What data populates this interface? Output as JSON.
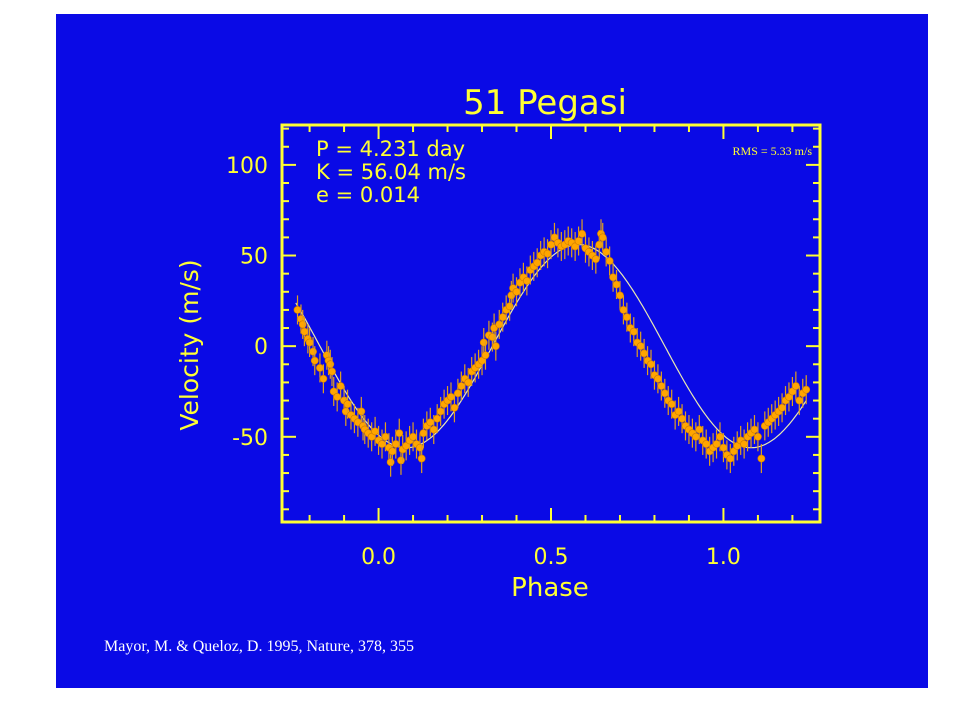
{
  "chart_data": {
    "type": "scatter",
    "title": "51 Pegasi",
    "xlabel": "Phase",
    "ylabel": "Velocity  (m/s)",
    "xlim": [
      -0.28,
      1.28
    ],
    "ylim": [
      -97,
      122
    ],
    "xticks": [
      0.0,
      0.5,
      1.0
    ],
    "xtick_labels": [
      "0.0",
      "0.5",
      "1.0"
    ],
    "yticks": [
      -50,
      0,
      50,
      100
    ],
    "ytick_labels": [
      "-50",
      "0",
      "50",
      "100"
    ],
    "grid": false,
    "params": [
      "P = 4.231 day",
      "K = 56.04 m/s",
      "e = 0.014"
    ],
    "rms_label": "RMS = 5.33 m/s",
    "fit_curve": {
      "amplitude": 56.04,
      "peak_phase": 0.58,
      "offset": 0
    },
    "series": [
      {
        "points": [
          [
            -0.235,
            20
          ],
          [
            -0.225,
            15
          ],
          [
            -0.22,
            12
          ],
          [
            -0.215,
            8
          ],
          [
            -0.205,
            4
          ],
          [
            -0.2,
            2
          ],
          [
            -0.19,
            -3
          ],
          [
            -0.185,
            -8
          ],
          [
            -0.17,
            -12
          ],
          [
            -0.16,
            -18
          ],
          [
            -0.15,
            -5
          ],
          [
            -0.145,
            -8
          ],
          [
            -0.14,
            -10
          ],
          [
            -0.135,
            -14
          ],
          [
            -0.13,
            -25
          ],
          [
            -0.12,
            -28
          ],
          [
            -0.11,
            -22
          ],
          [
            -0.1,
            -30
          ],
          [
            -0.095,
            -36
          ],
          [
            -0.09,
            -32
          ],
          [
            -0.08,
            -38
          ],
          [
            -0.07,
            -40
          ],
          [
            -0.06,
            -42
          ],
          [
            -0.05,
            -36
          ],
          [
            -0.045,
            -44
          ],
          [
            -0.04,
            -46
          ],
          [
            -0.03,
            -48
          ],
          [
            -0.02,
            -50
          ],
          [
            -0.01,
            -47
          ],
          [
            0.0,
            -52
          ],
          [
            0.01,
            -54
          ],
          [
            0.02,
            -50
          ],
          [
            0.03,
            -56
          ],
          [
            0.035,
            -64
          ],
          [
            0.04,
            -58
          ],
          [
            0.05,
            -54
          ],
          [
            0.06,
            -48
          ],
          [
            0.065,
            -63
          ],
          [
            0.07,
            -57
          ],
          [
            0.08,
            -55
          ],
          [
            0.09,
            -52
          ],
          [
            0.1,
            -50
          ],
          [
            0.11,
            -54
          ],
          [
            0.12,
            -56
          ],
          [
            0.125,
            -62
          ],
          [
            0.13,
            -48
          ],
          [
            0.14,
            -44
          ],
          [
            0.15,
            -42
          ],
          [
            0.16,
            -46
          ],
          [
            0.17,
            -40
          ],
          [
            0.18,
            -36
          ],
          [
            0.19,
            -32
          ],
          [
            0.2,
            -30
          ],
          [
            0.21,
            -28
          ],
          [
            0.22,
            -34
          ],
          [
            0.23,
            -26
          ],
          [
            0.24,
            -22
          ],
          [
            0.25,
            -18
          ],
          [
            0.26,
            -20
          ],
          [
            0.27,
            -14
          ],
          [
            0.28,
            -12
          ],
          [
            0.29,
            -10
          ],
          [
            0.3,
            -8
          ],
          [
            0.305,
            2
          ],
          [
            0.31,
            -5
          ],
          [
            0.32,
            6
          ],
          [
            0.33,
            5
          ],
          [
            0.335,
            10
          ],
          [
            0.34,
            0
          ],
          [
            0.35,
            12
          ],
          [
            0.36,
            16
          ],
          [
            0.37,
            20
          ],
          [
            0.38,
            22
          ],
          [
            0.385,
            28
          ],
          [
            0.39,
            32
          ],
          [
            0.4,
            30
          ],
          [
            0.41,
            35
          ],
          [
            0.42,
            38
          ],
          [
            0.43,
            36
          ],
          [
            0.44,
            42
          ],
          [
            0.45,
            44
          ],
          [
            0.46,
            46
          ],
          [
            0.47,
            50
          ],
          [
            0.48,
            52
          ],
          [
            0.49,
            51
          ],
          [
            0.5,
            56
          ],
          [
            0.51,
            60
          ],
          [
            0.52,
            57
          ],
          [
            0.53,
            55
          ],
          [
            0.54,
            56
          ],
          [
            0.55,
            58
          ],
          [
            0.56,
            57
          ],
          [
            0.57,
            55
          ],
          [
            0.58,
            58
          ],
          [
            0.59,
            62
          ],
          [
            0.6,
            54
          ],
          [
            0.61,
            52
          ],
          [
            0.62,
            50
          ],
          [
            0.63,
            48
          ],
          [
            0.64,
            56
          ],
          [
            0.645,
            62
          ],
          [
            0.65,
            60
          ],
          [
            0.66,
            52
          ],
          [
            0.67,
            47
          ],
          [
            0.68,
            38
          ],
          [
            0.69,
            34
          ],
          [
            0.7,
            28
          ],
          [
            0.71,
            20
          ],
          [
            0.72,
            16
          ],
          [
            0.73,
            10
          ],
          [
            0.74,
            8
          ],
          [
            0.75,
            2
          ],
          [
            0.76,
            0
          ],
          [
            0.77,
            -4
          ],
          [
            0.78,
            -8
          ],
          [
            0.79,
            -10
          ],
          [
            0.8,
            -16
          ],
          [
            0.81,
            -18
          ],
          [
            0.82,
            -22
          ],
          [
            0.83,
            -26
          ],
          [
            0.84,
            -30
          ],
          [
            0.85,
            -32
          ],
          [
            0.86,
            -38
          ],
          [
            0.87,
            -36
          ],
          [
            0.88,
            -40
          ],
          [
            0.89,
            -44
          ],
          [
            0.9,
            -46
          ],
          [
            0.91,
            -48
          ],
          [
            0.92,
            -50
          ],
          [
            0.93,
            -46
          ],
          [
            0.94,
            -52
          ],
          [
            0.95,
            -54
          ],
          [
            0.96,
            -58
          ],
          [
            0.97,
            -56
          ],
          [
            0.98,
            -54
          ],
          [
            0.99,
            -50
          ],
          [
            1.0,
            -56
          ],
          [
            1.01,
            -60
          ],
          [
            1.02,
            -62
          ],
          [
            1.03,
            -58
          ],
          [
            1.04,
            -55
          ],
          [
            1.05,
            -52
          ],
          [
            1.06,
            -54
          ],
          [
            1.07,
            -50
          ],
          [
            1.08,
            -48
          ],
          [
            1.09,
            -46
          ],
          [
            1.1,
            -50
          ],
          [
            1.11,
            -62
          ],
          [
            1.12,
            -44
          ],
          [
            1.13,
            -42
          ],
          [
            1.14,
            -40
          ],
          [
            1.15,
            -38
          ],
          [
            1.16,
            -36
          ],
          [
            1.17,
            -34
          ],
          [
            1.18,
            -30
          ],
          [
            1.19,
            -28
          ],
          [
            1.2,
            -25
          ],
          [
            1.21,
            -22
          ],
          [
            1.22,
            -30
          ],
          [
            1.23,
            -26
          ],
          [
            1.24,
            -24
          ]
        ]
      }
    ]
  },
  "citation": "Mayor, M. & Queloz, D. 1995, Nature, 378, 355"
}
